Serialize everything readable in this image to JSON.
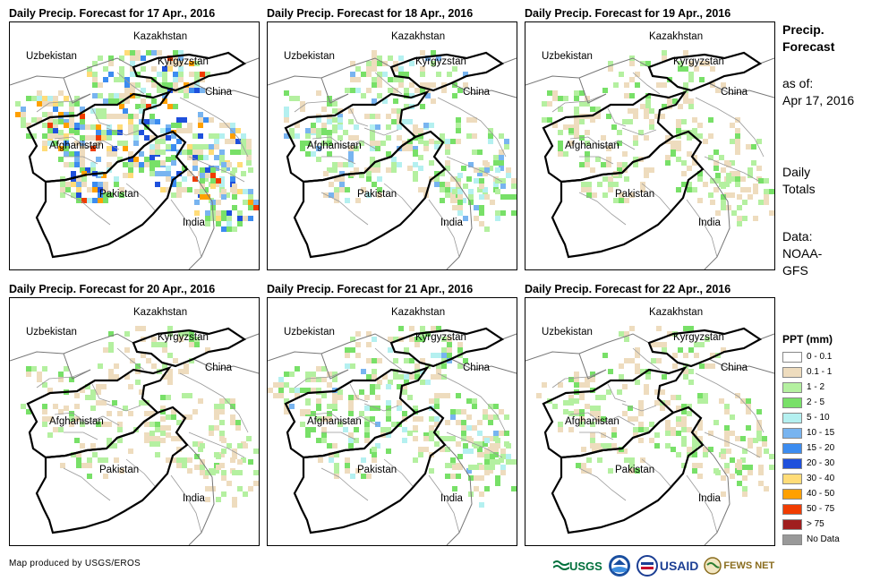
{
  "panels": [
    {
      "title": "Daily Precip. Forecast for 17 Apr., 2016",
      "intensity": 1.0
    },
    {
      "title": "Daily Precip. Forecast for 18 Apr., 2016",
      "intensity": 0.75
    },
    {
      "title": "Daily Precip. Forecast for 19 Apr., 2016",
      "intensity": 0.55
    },
    {
      "title": "Daily Precip. Forecast for 20 Apr., 2016",
      "intensity": 0.5
    },
    {
      "title": "Daily Precip. Forecast for 21 Apr., 2016",
      "intensity": 0.7
    },
    {
      "title": "Daily Precip. Forecast for 22 Apr., 2016",
      "intensity": 0.55
    }
  ],
  "map_labels": {
    "kazakhstan": "Kazakhstan",
    "uzbekistan": "Uzbekistan",
    "kyrgyzstan": "Kyrgyzstan",
    "china": "China",
    "afghanistan": "Afghanistan",
    "pakistan": "Pakistan",
    "india": "India"
  },
  "side": {
    "title_line1": "Precip.",
    "title_line2": "Forecast",
    "asof_line1": "as of:",
    "asof_line2": "Apr 17, 2016",
    "daily_line1": "Daily",
    "daily_line2": "Totals",
    "data_line1": "Data:",
    "data_line2": "NOAA-",
    "data_line3": "GFS"
  },
  "legend": {
    "title": "PPT (mm)",
    "items": [
      {
        "label": "0 - 0.1",
        "color": "#ffffff"
      },
      {
        "label": "0.1 - 1",
        "color": "#eedcbe"
      },
      {
        "label": "1 - 2",
        "color": "#b4f0a0"
      },
      {
        "label": "2 - 5",
        "color": "#78e068"
      },
      {
        "label": "5 - 10",
        "color": "#b4f0f0"
      },
      {
        "label": "10 - 15",
        "color": "#78b4f0"
      },
      {
        "label": "15 - 20",
        "color": "#3c8cf0"
      },
      {
        "label": "20 - 30",
        "color": "#1e50dc"
      },
      {
        "label": "30 - 40",
        "color": "#ffdc78"
      },
      {
        "label": "40 - 50",
        "color": "#ffa000"
      },
      {
        "label": "50 - 75",
        "color": "#f03c00"
      },
      {
        "label": "> 75",
        "color": "#a01e1e"
      },
      {
        "label": "No Data",
        "color": "#999999"
      }
    ]
  },
  "credit": "Map produced by USGS/EROS",
  "logos": {
    "usgs": "USGS",
    "usaid": "USAID",
    "fewsnet": "FEWS NET"
  }
}
